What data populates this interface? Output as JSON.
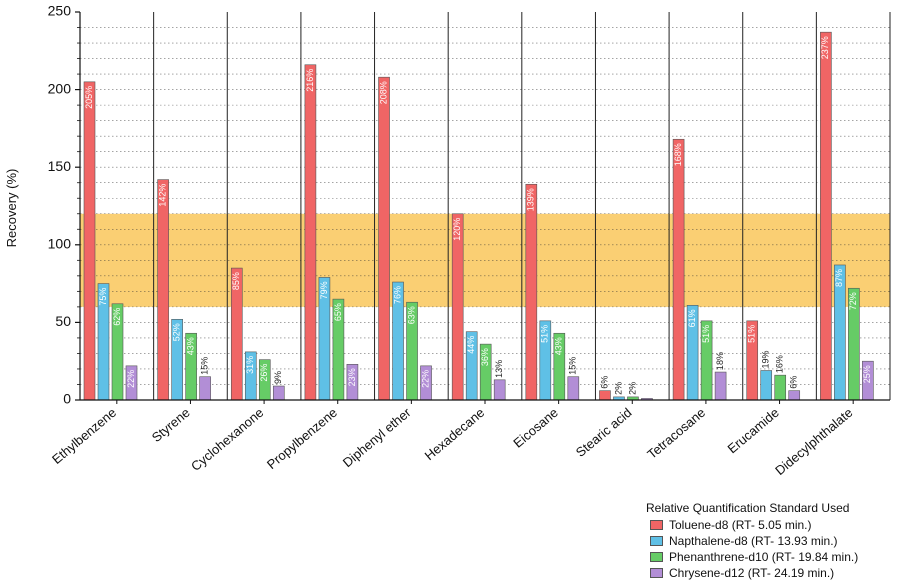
{
  "chart_data": {
    "type": "bar",
    "title": "",
    "xlabel": "",
    "ylabel": "Recovery (%)",
    "ylim": [
      0,
      250
    ],
    "yticks": [
      0,
      50,
      100,
      150,
      200,
      250
    ],
    "grid": true,
    "highlight_band": {
      "from": 60,
      "to": 120,
      "color": "#f9c75a"
    },
    "categories": [
      "Ethylbenzene",
      "Styrene",
      "Cyclohexanone",
      "Propylbenzene",
      "Diphenyl ether",
      "Hexadecane",
      "Eicosane",
      "Stearic acid",
      "Tetracosane",
      "Erucamide",
      "Didecylphthalate"
    ],
    "series": [
      {
        "name": "Toluene-d8 (RT- 5.05 min.)",
        "color": "#f06565",
        "values": [
          205,
          142,
          85,
          216,
          208,
          120,
          139,
          6,
          168,
          51,
          237
        ],
        "labels": [
          "205%",
          "142%",
          "85%",
          "216%",
          "208%",
          "120%",
          "139%",
          "6%",
          "168%",
          "51%",
          "237%"
        ]
      },
      {
        "name": "Napthalene-d8 (RT- 13.93 min.)",
        "color": "#5fc0e6",
        "values": [
          75,
          52,
          31,
          79,
          76,
          44,
          51,
          2,
          61,
          19,
          87
        ],
        "labels": [
          "75%",
          "52%",
          "31%",
          "79%",
          "76%",
          "44%",
          "51%",
          "2%",
          "61%",
          "19%",
          "87%"
        ]
      },
      {
        "name": "Phenanthrene-d10 (RT- 19.84 min.)",
        "color": "#66cc66",
        "values": [
          62,
          43,
          26,
          65,
          63,
          36,
          43,
          2,
          51,
          16,
          72
        ],
        "labels": [
          "62%",
          "43%",
          "26%",
          "65%",
          "63%",
          "36%",
          "43%",
          "2%",
          "51%",
          "16%",
          "72%"
        ]
      },
      {
        "name": "Chrysene-d12 (RT- 24.19 min.)",
        "color": "#b28ed6",
        "values": [
          22,
          15,
          9,
          23,
          22,
          13,
          15,
          1,
          18,
          6,
          25
        ],
        "labels": [
          "22%",
          "15%",
          "9%",
          "23%",
          "22%",
          "13%",
          "15%",
          "",
          "18%",
          "6%",
          "25%"
        ]
      }
    ],
    "legend": {
      "title": "Relative Quantification Standard Used",
      "placement": "bottom-right"
    }
  }
}
